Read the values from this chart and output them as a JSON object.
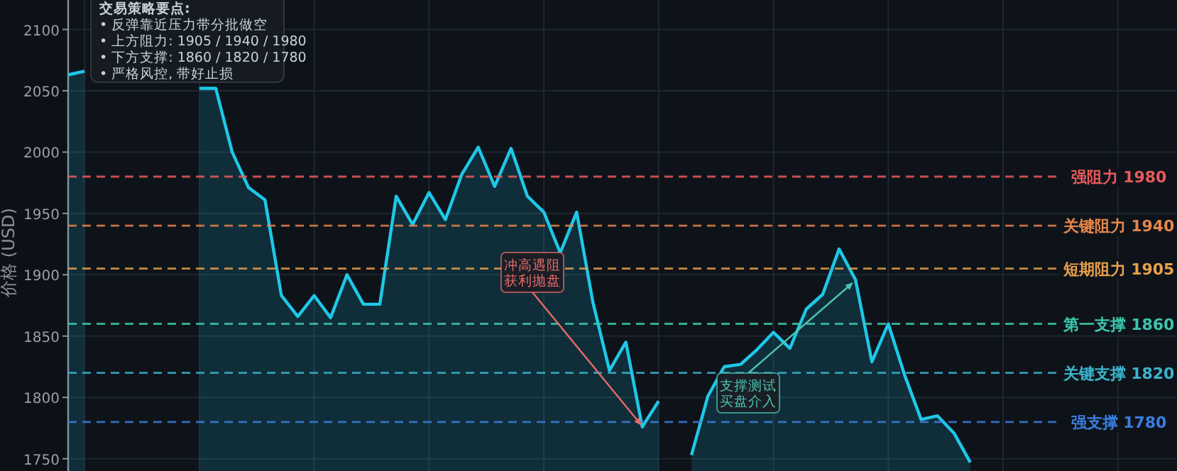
{
  "chart_data": {
    "type": "area",
    "ylabel": "价格 (USD)",
    "categories": [
      null,
      null,
      null,
      null,
      null,
      null,
      null,
      null,
      null,
      null,
      null,
      null,
      null,
      null,
      null,
      null,
      null,
      null,
      null,
      null,
      null,
      null,
      null,
      null,
      null,
      null,
      null,
      null,
      null,
      null,
      null,
      null,
      null,
      null,
      null,
      null,
      null,
      null,
      null,
      null,
      null,
      null,
      null,
      null,
      null,
      null,
      null,
      null,
      null,
      null,
      null,
      null,
      null,
      null,
      null,
      null,
      null,
      null,
      null,
      null,
      null,
      null,
      null,
      null,
      null,
      null,
      null,
      null
    ],
    "series": [
      {
        "color": "#1ec8e8",
        "values": [
          2063,
          2066,
          null,
          null,
          null,
          null,
          null,
          null,
          2052,
          2052,
          2000,
          1971,
          1961,
          1883,
          1866,
          1883,
          1865,
          1900,
          1876,
          1876,
          1964,
          1941,
          1967,
          1945,
          1982,
          2004,
          1972,
          2003,
          1964,
          1951,
          1918,
          1951,
          1877,
          1822,
          1845,
          1776,
          1797,
          null,
          1753,
          1801,
          1825,
          1827,
          1839,
          1853,
          1840,
          1872,
          1884,
          1921,
          1896,
          1829,
          1860,
          1818,
          1782,
          1785,
          1771,
          1747,
          null,
          null,
          null,
          null,
          null,
          null,
          null,
          null,
          null,
          null,
          null,
          null
        ]
      }
    ],
    "ylim": [
      1740,
      2124
    ],
    "yticks": [
      1750,
      1800,
      1850,
      1900,
      1950,
      2000,
      2050,
      2100
    ],
    "grid": true,
    "line_style": "solid",
    "marker": "none",
    "ref_lines": [
      {
        "axis": "y",
        "value": 1980,
        "label": "强阻力 1980",
        "color": "#e85a5a",
        "line_style": "dashed"
      },
      {
        "axis": "y",
        "value": 1940,
        "label": "关键阻力 1940",
        "color": "#e8864a",
        "line_style": "dashed"
      },
      {
        "axis": "y",
        "value": 1905,
        "label": "短期阻力 1905",
        "color": "#e8a04a",
        "line_style": "dashed"
      },
      {
        "axis": "y",
        "value": 1860,
        "label": "第一支撑 1860",
        "color": "#3cc4ac",
        "line_style": "dashed"
      },
      {
        "axis": "y",
        "value": 1820,
        "label": "关键支撑 1820",
        "color": "#3ab4cc",
        "line_style": "dashed"
      },
      {
        "axis": "y",
        "value": 1780,
        "label": "强支撑 1780",
        "color": "#3a7ee0",
        "line_style": "dashed"
      }
    ],
    "annotations": [
      "交易策略要点:\n• 反弹靠近压力带分批做空\n• 上方阻力: 1905 / 1940 / 1980\n• 下方支撑: 1860 / 1820 / 1780\n• 严格风控, 带好止损",
      "冲高遇阻获利抛盘",
      "支撑测试买盘介入"
    ]
  }
}
